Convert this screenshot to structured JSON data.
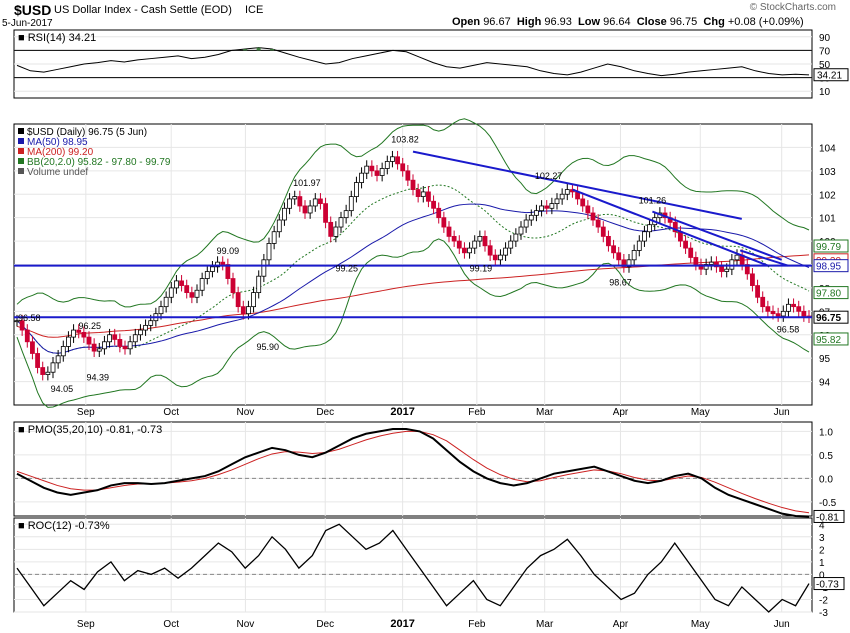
{
  "header": {
    "symbol": "$USD",
    "name": "US Dollar Index - Cash Settle (EOD)",
    "exchange": "ICE",
    "date": "5-Jun-2017",
    "watermark": "© StockCharts.com",
    "open_label": "Open",
    "open": "96.67",
    "high_label": "High",
    "high": "96.93",
    "low_label": "Low",
    "low": "96.64",
    "close_label": "Close",
    "close": "96.75",
    "chg_label": "Chg",
    "chg": "+0.08 (+0.09%)"
  },
  "chart_data": [
    {
      "id": "rsi",
      "type": "line",
      "title": "RSI(14) 34.21",
      "ylim": [
        0,
        100
      ],
      "y_ticks": [
        10,
        30,
        50,
        70,
        90
      ],
      "y_tick_labels": [
        "10",
        "30",
        "50",
        "70",
        "90"
      ],
      "overbought": 70,
      "oversold": 30,
      "last_value": 34.21,
      "last_value_label": "34.21",
      "series": [
        {
          "values": [
            48,
            40,
            38,
            42,
            46,
            50,
            52,
            55,
            53,
            56,
            58,
            60,
            62,
            58,
            60,
            64,
            70,
            72,
            74,
            72,
            66,
            60,
            55,
            50,
            52,
            58,
            62,
            66,
            70,
            68,
            60,
            52,
            46,
            44,
            48,
            52,
            50,
            48,
            46,
            40,
            36,
            34,
            38,
            44,
            50,
            46,
            40,
            36,
            33,
            35,
            38,
            40,
            42,
            44,
            46,
            40,
            36,
            34,
            35,
            34
          ]
        }
      ]
    },
    {
      "id": "price",
      "type": "candlestick",
      "legend": [
        {
          "label": "$USD (Daily) 96.75 (5 Jun)",
          "color": "#000000"
        },
        {
          "label": "MA(50) 98.95",
          "color": "#1a1aaa"
        },
        {
          "label": "MA(200) 99.20",
          "color": "#cc2222"
        },
        {
          "label": "BB(20,2.0) 95.82 - 97.80 - 99.79",
          "color": "#227722"
        },
        {
          "label": "Volume undef",
          "color": "#555555"
        }
      ],
      "ylim": [
        93,
        105
      ],
      "y_ticks": [
        94,
        95,
        96,
        97,
        98,
        99,
        100,
        101,
        102,
        103,
        104
      ],
      "y_tick_labels": [
        "94",
        "95",
        "96",
        "97",
        "98",
        "99",
        "100",
        "101",
        "102",
        "103",
        "104"
      ],
      "right_badges": [
        {
          "label": "99.79",
          "value": 99.79,
          "color": "#227722"
        },
        {
          "label": "99.20",
          "value": 99.2,
          "color": "#cc2222"
        },
        {
          "label": "98.95",
          "value": 98.95,
          "color": "#1a1aaa"
        },
        {
          "label": "97.80",
          "value": 97.8,
          "color": "#227722"
        },
        {
          "label": "96.75",
          "value": 96.75,
          "color": "#000000"
        },
        {
          "label": "95.82",
          "value": 95.82,
          "color": "#227722"
        }
      ],
      "x_labels": [
        "Sep",
        "Oct",
        "Nov",
        "Dec",
        "2017",
        "Feb",
        "Mar",
        "Apr",
        "May",
        "Jun"
      ],
      "x_label_pos": [
        0.09,
        0.197,
        0.29,
        0.39,
        0.487,
        0.58,
        0.665,
        0.76,
        0.86,
        0.962
      ],
      "closes": [
        96.6,
        96.2,
        95.7,
        95.2,
        94.6,
        94.3,
        94.4,
        94.8,
        95.1,
        95.5,
        95.9,
        96.2,
        96.1,
        95.9,
        95.6,
        95.3,
        95.4,
        95.7,
        96.0,
        95.8,
        95.5,
        95.4,
        95.7,
        96.0,
        96.2,
        96.4,
        96.6,
        96.9,
        97.2,
        97.6,
        98.0,
        98.3,
        98.1,
        97.8,
        97.6,
        97.9,
        98.4,
        98.7,
        98.9,
        99.1,
        99.0,
        98.4,
        97.8,
        97.2,
        96.9,
        97.2,
        97.8,
        98.5,
        99.2,
        99.9,
        100.4,
        100.9,
        101.4,
        101.8,
        101.9,
        101.5,
        101.2,
        101.5,
        101.8,
        101.6,
        100.8,
        100.2,
        100.6,
        101.0,
        101.3,
        101.9,
        102.5,
        102.9,
        103.2,
        103.0,
        102.8,
        103.1,
        103.4,
        103.6,
        103.3,
        103.0,
        102.6,
        102.2,
        101.9,
        102.1,
        101.7,
        101.4,
        101.0,
        100.6,
        100.2,
        100.0,
        99.7,
        99.5,
        99.7,
        100.0,
        100.2,
        99.8,
        99.4,
        99.2,
        99.4,
        99.7,
        100.0,
        100.3,
        100.6,
        100.9,
        101.1,
        101.3,
        101.5,
        101.4,
        101.6,
        101.8,
        102.0,
        102.2,
        102.1,
        101.8,
        101.5,
        101.2,
        100.9,
        100.6,
        100.2,
        99.8,
        99.5,
        99.2,
        98.9,
        99.2,
        99.6,
        100.0,
        100.4,
        100.7,
        101.0,
        101.2,
        101.0,
        100.8,
        100.4,
        100.0,
        99.7,
        99.3,
        99.0,
        98.8,
        99.0,
        99.1,
        98.9,
        98.7,
        98.8,
        99.2,
        99.4,
        99.0,
        98.6,
        98.1,
        97.6,
        97.2,
        97.0,
        96.9,
        96.8,
        97.0,
        97.3,
        97.2,
        97.0,
        96.8,
        96.75
      ],
      "lows": [
        {
          "value": 94.05,
          "label": "94.05",
          "idx": 5
        },
        {
          "value": 94.39,
          "label": "94.39",
          "idx": 21
        }
      ],
      "annotations": [
        {
          "label": "96.58",
          "value": 96.58,
          "pos": 0.005,
          "anchor": "left"
        },
        {
          "label": "96.25",
          "value": 96.25,
          "pos": 0.095,
          "anchor": "middle"
        },
        {
          "label": "94.05",
          "value": 93.55,
          "pos": 0.06,
          "anchor": "middle"
        },
        {
          "label": "94.39",
          "value": 94.05,
          "pos": 0.105,
          "anchor": "middle"
        },
        {
          "label": "99.09",
          "value": 99.45,
          "pos": 0.268,
          "anchor": "middle"
        },
        {
          "label": "95.90",
          "value": 95.35,
          "pos": 0.318,
          "anchor": "middle"
        },
        {
          "label": "101.97",
          "value": 102.35,
          "pos": 0.367,
          "anchor": "middle"
        },
        {
          "label": "99.25",
          "value": 98.7,
          "pos": 0.417,
          "anchor": "middle"
        },
        {
          "label": "103.82",
          "value": 104.2,
          "pos": 0.49,
          "anchor": "middle"
        },
        {
          "label": "99.19",
          "value": 98.7,
          "pos": 0.585,
          "anchor": "middle"
        },
        {
          "label": "102.27",
          "value": 102.65,
          "pos": 0.67,
          "anchor": "middle"
        },
        {
          "label": "98.67",
          "value": 98.1,
          "pos": 0.76,
          "anchor": "middle"
        },
        {
          "label": "101.26",
          "value": 101.6,
          "pos": 0.8,
          "anchor": "middle"
        },
        {
          "label": "96.58",
          "value": 96.1,
          "pos": 0.97,
          "anchor": "middle"
        }
      ],
      "horizontal_lines": [
        98.95,
        96.75
      ],
      "trend_lines": [
        {
          "from": [
            0.5,
            103.82
          ],
          "to": [
            0.912,
            100.95
          ]
        },
        {
          "from": [
            0.8,
            101.26
          ],
          "to": [
            0.962,
            99.2
          ]
        },
        {
          "from": [
            0.7,
            102.2
          ],
          "to": [
            0.945,
            98.95
          ]
        },
        {
          "from": [
            0.91,
            99.6
          ],
          "to": [
            0.97,
            98.95
          ]
        }
      ]
    },
    {
      "id": "pmo",
      "type": "line",
      "title": "PMO(35,20,10) -0.81, -0.73",
      "ylim": [
        -0.8,
        1.2
      ],
      "y_ticks": [
        -0.5,
        0.0,
        0.5,
        1.0
      ],
      "y_tick_labels": [
        "-0.5",
        "0.0",
        "0.5",
        "1.0"
      ],
      "last_value_label": "-0.81",
      "series": [
        {
          "name": "PMO",
          "color": "#000000",
          "values": [
            0.1,
            -0.05,
            -0.2,
            -0.3,
            -0.35,
            -0.3,
            -0.25,
            -0.15,
            -0.1,
            -0.1,
            -0.12,
            -0.1,
            -0.05,
            0.0,
            0.05,
            0.15,
            0.3,
            0.45,
            0.55,
            0.65,
            0.6,
            0.5,
            0.45,
            0.55,
            0.7,
            0.85,
            0.95,
            1.0,
            1.05,
            1.05,
            1.0,
            0.85,
            0.6,
            0.35,
            0.15,
            0.0,
            -0.1,
            -0.15,
            -0.1,
            0.0,
            0.1,
            0.15,
            0.2,
            0.25,
            0.15,
            0.05,
            -0.05,
            -0.1,
            -0.05,
            0.05,
            0.1,
            0.0,
            -0.2,
            -0.35,
            -0.45,
            -0.55,
            -0.65,
            -0.75,
            -0.8,
            -0.81
          ]
        },
        {
          "name": "Signal",
          "color": "#cc2222",
          "values": [
            0.15,
            0.05,
            -0.05,
            -0.15,
            -0.22,
            -0.25,
            -0.25,
            -0.2,
            -0.15,
            -0.12,
            -0.12,
            -0.1,
            -0.08,
            -0.05,
            0.0,
            0.08,
            0.18,
            0.3,
            0.42,
            0.52,
            0.57,
            0.56,
            0.53,
            0.55,
            0.62,
            0.72,
            0.82,
            0.9,
            0.96,
            1.0,
            1.0,
            0.93,
            0.8,
            0.6,
            0.4,
            0.22,
            0.08,
            -0.02,
            -0.07,
            -0.05,
            0.02,
            0.08,
            0.13,
            0.18,
            0.16,
            0.1,
            0.02,
            -0.04,
            -0.05,
            0.0,
            0.05,
            0.02,
            -0.08,
            -0.2,
            -0.32,
            -0.43,
            -0.53,
            -0.62,
            -0.69,
            -0.73
          ]
        }
      ]
    },
    {
      "id": "roc",
      "type": "line",
      "title": "ROC(12) -0.73%",
      "ylim": [
        -3,
        4.5
      ],
      "y_ticks": [
        -3,
        -2,
        -1,
        0,
        1,
        2,
        3,
        4
      ],
      "y_tick_labels": [
        "-3",
        "-2",
        "-1",
        "0",
        "1",
        "2",
        "3",
        "4"
      ],
      "last_value_label": "-0.73",
      "series": [
        {
          "color": "#000000",
          "values": [
            0.5,
            -1.0,
            -2.5,
            -1.5,
            -0.5,
            -1.2,
            0.2,
            1.0,
            -0.5,
            0.3,
            0.0,
            0.5,
            -0.3,
            0.5,
            1.5,
            2.5,
            1.8,
            0.5,
            1.5,
            3.0,
            2.0,
            0.5,
            1.5,
            3.5,
            4.0,
            3.0,
            2.0,
            2.5,
            3.5,
            2.0,
            0.5,
            -1.0,
            -2.5,
            -1.5,
            -0.5,
            -2.0,
            -2.5,
            -1.0,
            0.5,
            1.5,
            2.0,
            2.8,
            1.5,
            0.0,
            -1.0,
            -2.0,
            -1.5,
            0.0,
            1.0,
            2.5,
            1.0,
            -0.5,
            -2.0,
            -2.5,
            -1.0,
            -2.0,
            -3.0,
            -2.0,
            -2.5,
            -0.73
          ]
        }
      ]
    }
  ]
}
